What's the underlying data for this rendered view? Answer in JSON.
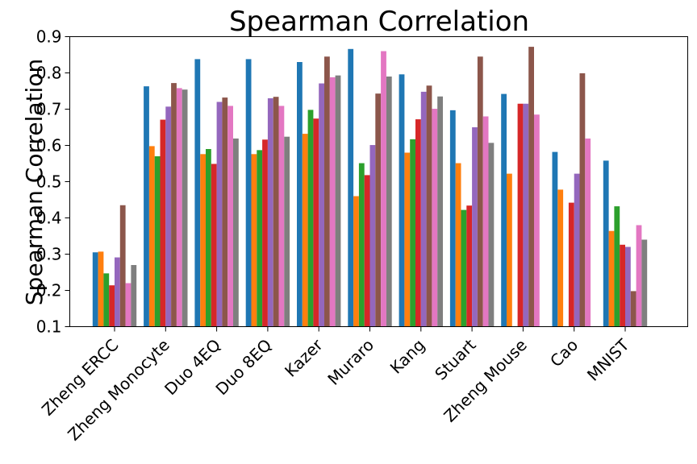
{
  "chart_data": {
    "type": "bar",
    "title": "Spearman Correlation",
    "xlabel": "",
    "ylabel": "Spearman Correlation",
    "ylim": [
      0.1,
      0.9
    ],
    "yticks": [
      "0.1",
      "0.2",
      "0.3",
      "0.4",
      "0.5",
      "0.6",
      "0.7",
      "0.8",
      "0.9"
    ],
    "categories": [
      "Zheng ERCC",
      "Zheng Monocyte",
      "Duo 4EQ",
      "Duo 8EQ",
      "Kazer",
      "Muraro",
      "Kang",
      "Stuart",
      "Zheng Mouse",
      "Cao",
      "MNIST"
    ],
    "grid": false,
    "legend": "none",
    "colors": [
      "#1f77b4",
      "#ff7f0e",
      "#2ca02c",
      "#d62728",
      "#9467bd",
      "#8c564b",
      "#e377c2",
      "#7f7f7f"
    ],
    "series": [
      {
        "values": [
          0.305,
          0.763,
          0.838,
          0.838,
          0.83,
          0.866,
          0.796,
          0.697,
          0.742,
          0.582,
          0.558
        ]
      },
      {
        "values": [
          0.307,
          0.598,
          0.576,
          0.576,
          0.632,
          0.46,
          0.58,
          0.551,
          0.522,
          0.478,
          0.364
        ]
      },
      {
        "values": [
          0.247,
          0.57,
          0.59,
          0.587,
          0.698,
          0.551,
          0.617,
          0.422,
          null,
          null,
          0.432
        ]
      },
      {
        "values": [
          0.214,
          0.671,
          0.549,
          0.616,
          0.674,
          0.518,
          0.672,
          0.434,
          0.715,
          0.442,
          0.326
        ]
      },
      {
        "values": [
          0.291,
          0.707,
          0.72,
          0.73,
          0.771,
          0.601,
          0.748,
          0.65,
          0.715,
          0.522,
          0.32
        ]
      },
      {
        "values": [
          0.435,
          0.772,
          0.732,
          0.734,
          0.845,
          0.743,
          0.765,
          0.845,
          0.872,
          0.799,
          0.198
        ]
      },
      {
        "values": [
          0.22,
          0.758,
          0.709,
          0.709,
          0.788,
          0.86,
          0.701,
          0.68,
          0.685,
          0.619,
          0.38
        ]
      },
      {
        "values": [
          0.27,
          0.754,
          0.619,
          0.624,
          0.793,
          0.79,
          0.735,
          0.607,
          null,
          null,
          0.34
        ]
      }
    ]
  }
}
